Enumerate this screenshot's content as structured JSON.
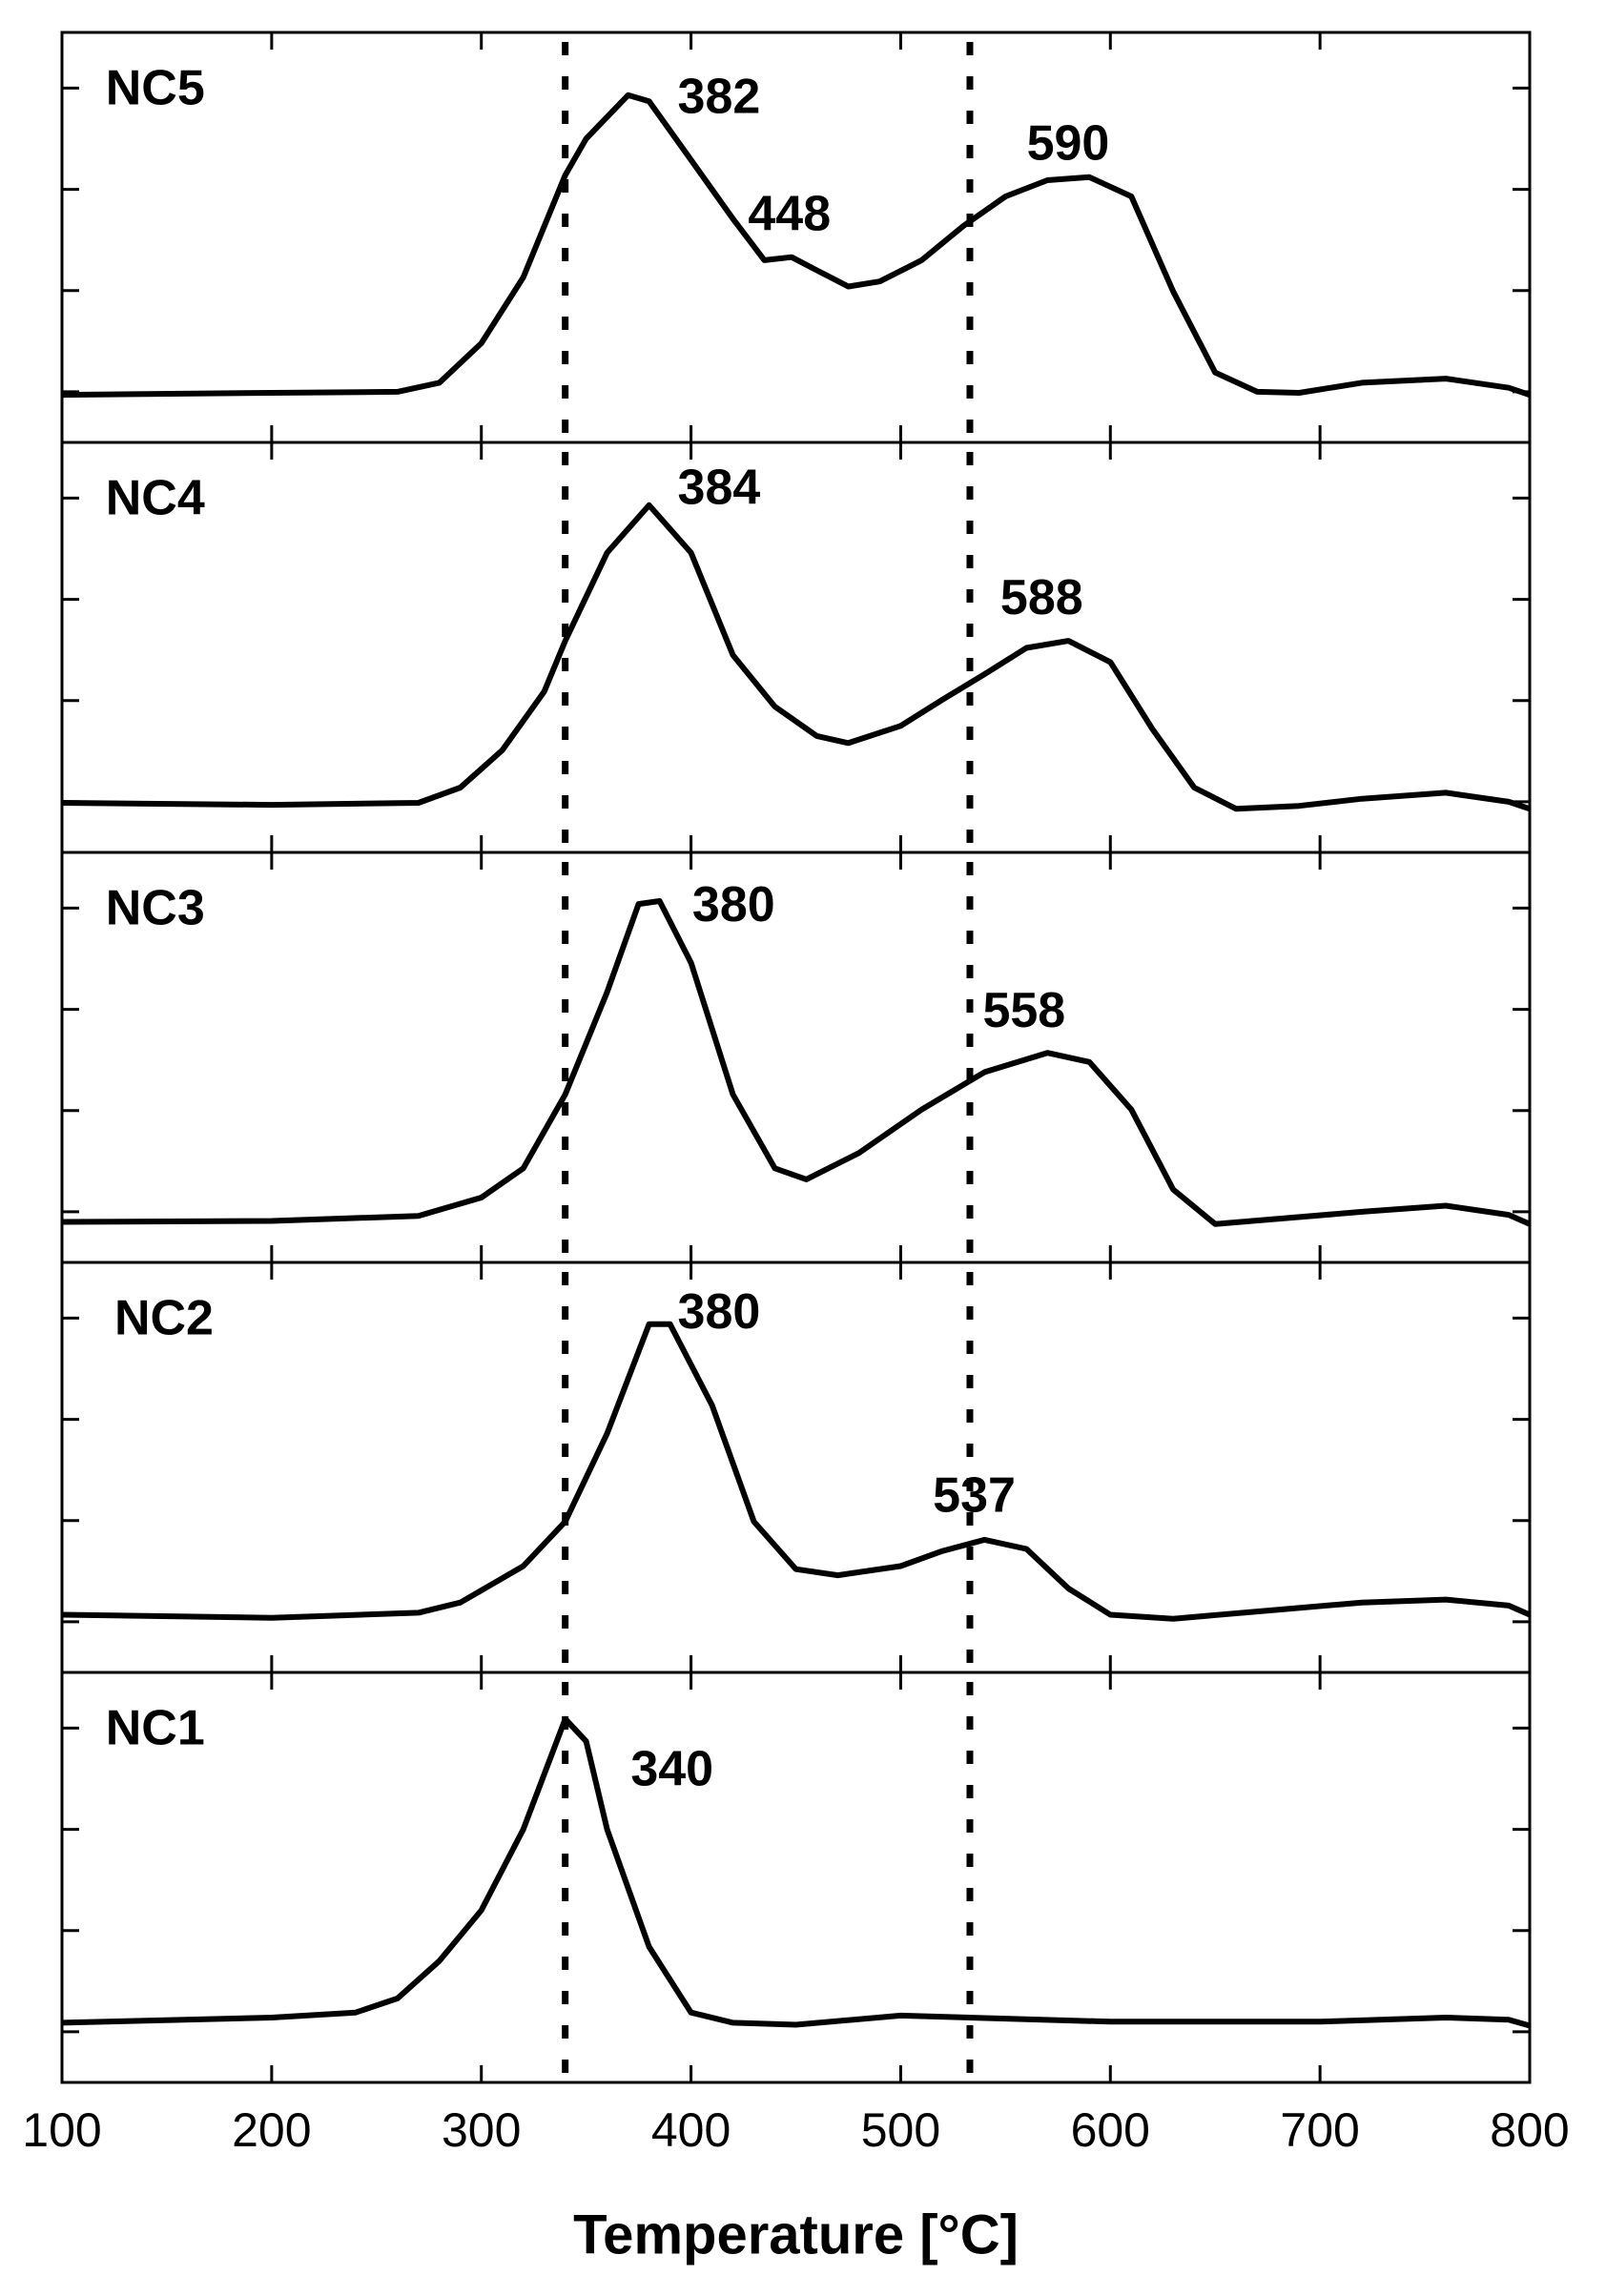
{
  "chart_data": [
    {
      "type": "line",
      "title": "NC5",
      "color": "#000000",
      "xlim": [
        100,
        800
      ],
      "xticks": [
        100,
        200,
        300,
        400,
        500,
        600,
        700,
        800
      ],
      "ylim": [
        -0.5,
        3.55
      ],
      "yticks": [
        0,
        1,
        2,
        3
      ],
      "vlines": [
        340,
        533
      ],
      "annotations": [
        382,
        448,
        590
      ],
      "x": [
        100,
        200,
        260,
        280,
        300,
        320,
        340,
        350,
        370,
        380,
        400,
        420,
        435,
        448,
        460,
        475,
        490,
        510,
        530,
        550,
        570,
        590,
        610,
        630,
        650,
        670,
        690,
        720,
        760,
        790,
        800
      ],
      "values": [
        -0.03,
        -0.01,
        0,
        0.09,
        0.48,
        1.13,
        2.14,
        2.5,
        2.93,
        2.87,
        2.29,
        1.71,
        1.3,
        1.33,
        1.2,
        1.04,
        1.09,
        1.3,
        1.64,
        1.93,
        2.09,
        2.12,
        1.93,
        0.99,
        0.19,
        0,
        -0.01,
        0.09,
        0.13,
        0.04,
        -0.03
      ]
    },
    {
      "type": "line",
      "title": "NC4",
      "color": "#000000",
      "xlim": [
        100,
        800
      ],
      "xticks": [
        100,
        200,
        300,
        400,
        500,
        600,
        700,
        800
      ],
      "ylim": [
        -0.5,
        3.55
      ],
      "yticks": [
        0,
        1,
        2,
        3
      ],
      "vlines": [
        340,
        533
      ],
      "annotations": [
        384,
        588
      ],
      "x": [
        100,
        200,
        270,
        290,
        310,
        330,
        340,
        360,
        380,
        400,
        420,
        440,
        460,
        475,
        500,
        520,
        540,
        560,
        580,
        600,
        620,
        640,
        660,
        690,
        720,
        760,
        790,
        800
      ],
      "values": [
        -0.01,
        -0.03,
        -0.01,
        0.14,
        0.51,
        1.09,
        1.59,
        2.46,
        2.93,
        2.46,
        1.45,
        0.94,
        0.65,
        0.58,
        0.75,
        1.01,
        1.26,
        1.52,
        1.59,
        1.38,
        0.72,
        0.14,
        -0.07,
        -0.04,
        0.03,
        0.09,
        0,
        -0.07
      ]
    },
    {
      "type": "line",
      "title": "NC3",
      "color": "#000000",
      "xlim": [
        100,
        800
      ],
      "xticks": [
        100,
        200,
        300,
        400,
        500,
        600,
        700,
        800
      ],
      "ylim": [
        -0.5,
        3.55
      ],
      "yticks": [
        0,
        1,
        2,
        3
      ],
      "vlines": [
        340,
        533
      ],
      "annotations": [
        380,
        558
      ],
      "x": [
        100,
        200,
        270,
        300,
        320,
        340,
        360,
        375,
        385,
        400,
        420,
        440,
        455,
        480,
        510,
        540,
        570,
        590,
        610,
        630,
        650,
        680,
        720,
        760,
        790,
        800
      ],
      "values": [
        -0.1,
        -0.09,
        -0.04,
        0.14,
        0.43,
        1.16,
        2.17,
        3.04,
        3.07,
        2.46,
        1.16,
        0.43,
        0.32,
        0.58,
        1.01,
        1.38,
        1.57,
        1.48,
        1.01,
        0.22,
        -0.12,
        -0.07,
        0,
        0.06,
        -0.03,
        -0.12
      ]
    },
    {
      "type": "line",
      "title": "NC2",
      "color": "#000000",
      "xlim": [
        100,
        800
      ],
      "xticks": [
        100,
        200,
        300,
        400,
        500,
        600,
        700,
        800
      ],
      "ylim": [
        -0.5,
        3.55
      ],
      "yticks": [
        0,
        1,
        2,
        3
      ],
      "vlines": [
        340,
        533
      ],
      "annotations": [
        380,
        537
      ],
      "x": [
        100,
        200,
        270,
        290,
        320,
        340,
        360,
        380,
        390,
        410,
        430,
        450,
        470,
        500,
        520,
        540,
        560,
        580,
        600,
        630,
        680,
        720,
        760,
        790,
        800
      ],
      "values": [
        0.07,
        0.04,
        0.09,
        0.19,
        0.55,
        0.99,
        1.86,
        2.94,
        2.94,
        2.14,
        0.99,
        0.52,
        0.46,
        0.55,
        0.7,
        0.81,
        0.72,
        0.33,
        0.07,
        0.03,
        0.12,
        0.19,
        0.22,
        0.16,
        0.07
      ]
    },
    {
      "type": "line",
      "title": "NC1",
      "color": "#000000",
      "xlim": [
        100,
        800
      ],
      "xticks": [
        100,
        200,
        300,
        400,
        500,
        600,
        700,
        800
      ],
      "ylim": [
        -0.5,
        3.55
      ],
      "yticks": [
        0,
        1,
        2,
        3
      ],
      "vlines": [
        340,
        533
      ],
      "annotations": [
        340
      ],
      "xlabel": "Temperature [°C]",
      "x": [
        100,
        200,
        240,
        260,
        280,
        300,
        320,
        340,
        350,
        360,
        380,
        400,
        420,
        450,
        500,
        550,
        600,
        700,
        760,
        790,
        800
      ],
      "values": [
        0.09,
        0.14,
        0.19,
        0.33,
        0.7,
        1.2,
        2,
        3.09,
        2.87,
        2,
        0.84,
        0.19,
        0.09,
        0.07,
        0.16,
        0.13,
        0.1,
        0.1,
        0.14,
        0.12,
        0.06
      ]
    }
  ]
}
